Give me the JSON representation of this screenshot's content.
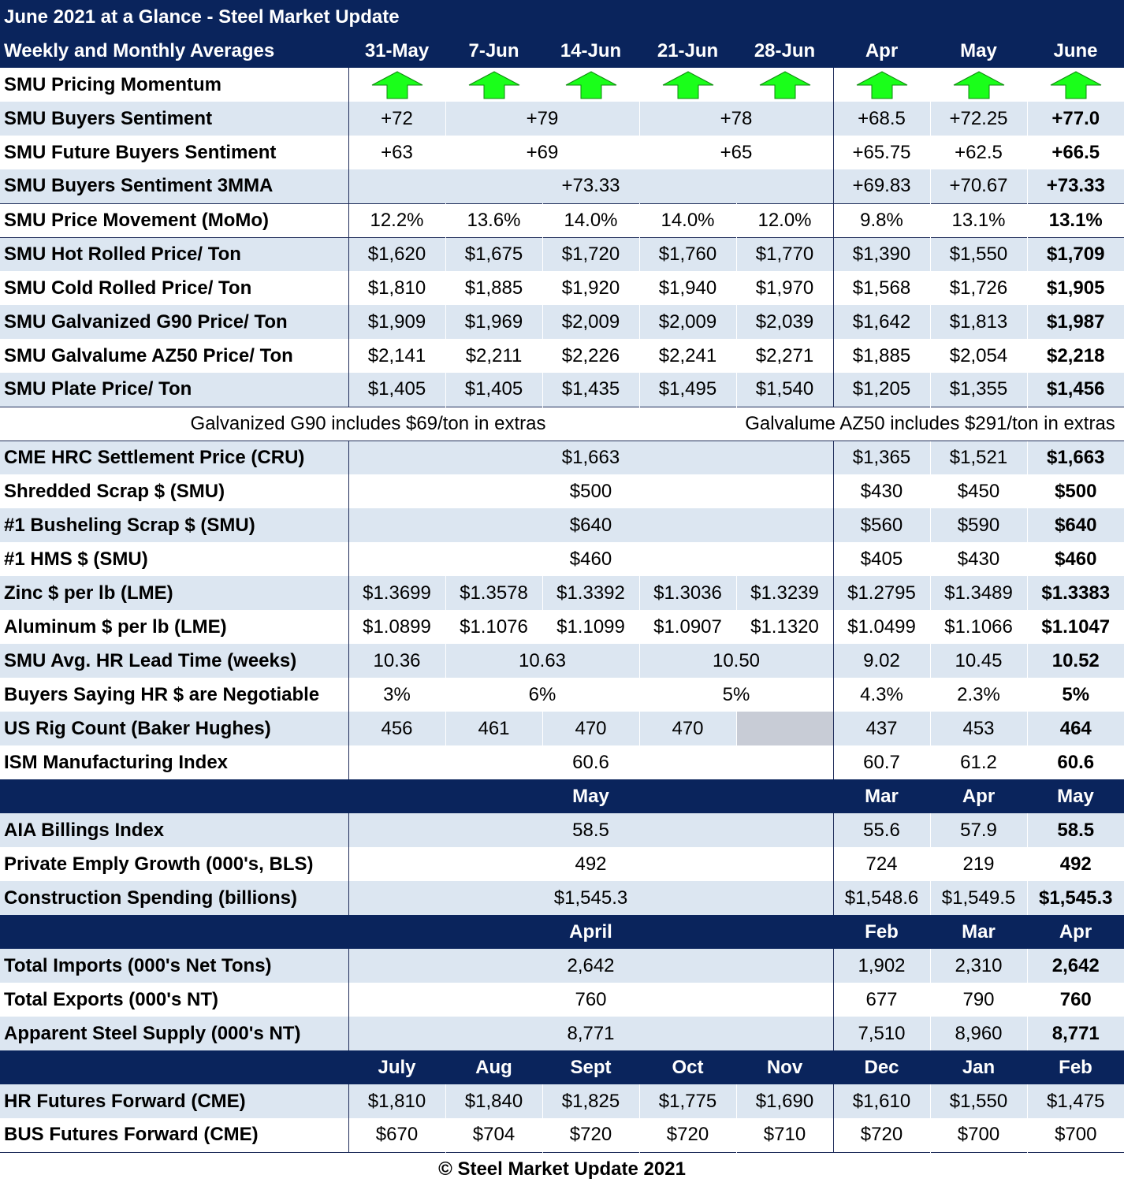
{
  "title": "June 2021 at a Glance - Steel Market Update",
  "header": {
    "label": "Weekly and Monthly Averages",
    "cols": [
      "31-May",
      "7-Jun",
      "14-Jun",
      "21-Jun",
      "28-Jun",
      "Apr",
      "May",
      "June"
    ]
  },
  "colors": {
    "navy": "#0a245c",
    "band": "#dce6f1",
    "arrow": "#1aff1a"
  },
  "momentum": {
    "label": "SMU Pricing Momentum",
    "icon": "arrow-up-icon",
    "direction": [
      "up",
      "up",
      "up",
      "up",
      "up",
      "up",
      "up",
      "up"
    ]
  },
  "sentiment": {
    "buyers": {
      "label": "SMU Buyers Sentiment",
      "w1": "+72",
      "w23": "+79",
      "w45": "+78",
      "apr": "+68.5",
      "may": "+72.25",
      "june": "+77.0"
    },
    "future": {
      "label": "SMU Future Buyers Sentiment",
      "w1": "+63",
      "w23": "+69",
      "w45": "+65",
      "apr": "+65.75",
      "may": "+62.5",
      "june": "+66.5"
    },
    "mma": {
      "label": "SMU Buyers Sentiment 3MMA",
      "weekly": "+73.33",
      "apr": "+69.83",
      "may": "+70.67",
      "june": "+73.33"
    }
  },
  "momo": {
    "label": "SMU Price Movement (MoMo)",
    "values": [
      "12.2%",
      "13.6%",
      "14.0%",
      "14.0%",
      "12.0%",
      "9.8%",
      "13.1%",
      "13.1%"
    ]
  },
  "prices": [
    {
      "label": "SMU Hot Rolled Price/ Ton",
      "values": [
        "$1,620",
        "$1,675",
        "$1,720",
        "$1,760",
        "$1,770",
        "$1,390",
        "$1,550",
        "$1,709"
      ]
    },
    {
      "label": "SMU Cold Rolled Price/ Ton",
      "values": [
        "$1,810",
        "$1,885",
        "$1,920",
        "$1,940",
        "$1,970",
        "$1,568",
        "$1,726",
        "$1,905"
      ]
    },
    {
      "label": "SMU Galvanized G90 Price/ Ton",
      "values": [
        "$1,909",
        "$1,969",
        "$2,009",
        "$2,009",
        "$2,039",
        "$1,642",
        "$1,813",
        "$1,987"
      ]
    },
    {
      "label": "SMU Galvalume AZ50 Price/ Ton",
      "values": [
        "$2,141",
        "$2,211",
        "$2,226",
        "$2,241",
        "$2,271",
        "$1,885",
        "$2,054",
        "$2,218"
      ]
    },
    {
      "label": "SMU Plate Price/ Ton",
      "values": [
        "$1,405",
        "$1,405",
        "$1,435",
        "$1,495",
        "$1,540",
        "$1,205",
        "$1,355",
        "$1,456"
      ]
    }
  ],
  "notes": {
    "g90": "Galvanized G90 includes $69/ton in extras",
    "az50": "Galvalume AZ50 includes $291/ton in extras"
  },
  "raw": [
    {
      "label": "CME HRC Settlement Price (CRU)",
      "weekly": "$1,663",
      "apr": "$1,365",
      "may": "$1,521",
      "june": "$1,663"
    },
    {
      "label": "Shredded Scrap $ (SMU)",
      "weekly": "$500",
      "apr": "$430",
      "may": "$450",
      "june": "$500"
    },
    {
      "label": "#1 Busheling Scrap $ (SMU)",
      "weekly": "$640",
      "apr": "$560",
      "may": "$590",
      "june": "$640"
    },
    {
      "label": "#1 HMS $ (SMU)",
      "weekly": "$460",
      "apr": "$405",
      "may": "$430",
      "june": "$460"
    }
  ],
  "metals": [
    {
      "label": "Zinc $ per lb (LME)",
      "values": [
        "$1.3699",
        "$1.3578",
        "$1.3392",
        "$1.3036",
        "$1.3239",
        "$1.2795",
        "$1.3489",
        "$1.3383"
      ]
    },
    {
      "label": "Aluminum $ per lb (LME)",
      "values": [
        "$1.0899",
        "$1.1076",
        "$1.1099",
        "$1.0907",
        "$1.1320",
        "$1.0499",
        "$1.1066",
        "$1.1047"
      ]
    }
  ],
  "leadtime": {
    "label": "SMU Avg. HR Lead Time (weeks)",
    "w1": "10.36",
    "w23": "10.63",
    "w45": "10.50",
    "apr": "9.02",
    "may": "10.45",
    "june": "10.52"
  },
  "negotiable": {
    "label": "Buyers Saying HR $ are Negotiable",
    "w1": "3%",
    "w23": "6%",
    "w45": "5%",
    "apr": "4.3%",
    "may": "2.3%",
    "june": "5%"
  },
  "rig": {
    "label": "US Rig Count (Baker Hughes)",
    "values": [
      "456",
      "461",
      "470",
      "470"
    ],
    "apr": "437",
    "may": "453",
    "june": "464"
  },
  "ism": {
    "label": "ISM Manufacturing Index",
    "weekly": "60.6",
    "apr": "60.7",
    "may": "61.2",
    "june": "60.6"
  },
  "construction": {
    "header": {
      "weekly": "May",
      "c1": "Mar",
      "c2": "Apr",
      "c3": "May"
    },
    "rows": [
      {
        "label": "AIA Billings Index",
        "weekly": "58.5",
        "c1": "55.6",
        "c2": "57.9",
        "c3": "58.5"
      },
      {
        "label": "Private Emply Growth (000's, BLS)",
        "weekly": "492",
        "c1": "724",
        "c2": "219",
        "c3": "492"
      },
      {
        "label": "Construction Spending (billions)",
        "weekly": "$1,545.3",
        "c1": "$1,548.6",
        "c2": "$1,549.5",
        "c3": "$1,545.3"
      }
    ]
  },
  "trade": {
    "header": {
      "weekly": "April",
      "c1": "Feb",
      "c2": "Mar",
      "c3": "Apr"
    },
    "rows": [
      {
        "label": "Total Imports (000's Net Tons)",
        "weekly": "2,642",
        "c1": "1,902",
        "c2": "2,310",
        "c3": "2,642"
      },
      {
        "label": "Total Exports (000's NT)",
        "weekly": "760",
        "c1": "677",
        "c2": "790",
        "c3": "760"
      },
      {
        "label": "Apparent Steel Supply (000's NT)",
        "weekly": "8,771",
        "c1": "7,510",
        "c2": "8,960",
        "c3": "8,771"
      }
    ]
  },
  "futures": {
    "months": [
      "July",
      "Aug",
      "Sept",
      "Oct",
      "Nov",
      "Dec",
      "Jan",
      "Feb"
    ],
    "rows": [
      {
        "label": "HR Futures Forward (CME)",
        "values": [
          "$1,810",
          "$1,840",
          "$1,825",
          "$1,775",
          "$1,690",
          "$1,610",
          "$1,550",
          "$1,475"
        ]
      },
      {
        "label": "BUS Futures Forward (CME)",
        "values": [
          "$670",
          "$704",
          "$720",
          "$720",
          "$710",
          "$720",
          "$700",
          "$700"
        ]
      }
    ]
  },
  "footer": "© Steel Market Update 2021"
}
